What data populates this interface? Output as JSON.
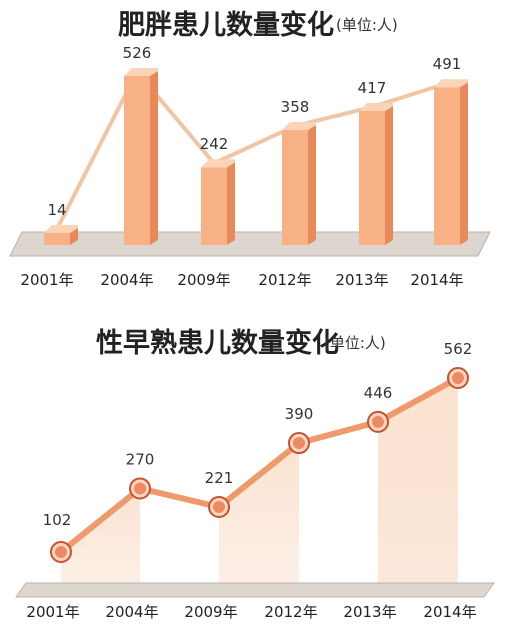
{
  "colors": {
    "bar_front": "#f7b184",
    "bar_side": "#e8895a",
    "bar_top": "#fbd3b6",
    "connector": "#f1c4a4",
    "line": "#ee9a6c",
    "marker_fill": "#ee8a63",
    "marker_stroke": "#c8522d",
    "area": "#fbe3d2",
    "floor": "#ddd6cf",
    "floor_edge": "#bdb2a7"
  },
  "chart_data": [
    {
      "type": "bar",
      "title": "肥胖患儿数量变化",
      "unit": "(单位:人)",
      "categories": [
        "2001年",
        "2004年",
        "2009年",
        "2012年",
        "2013年",
        "2014年"
      ],
      "series": [
        {
          "values": [
            14,
            526,
            242,
            358,
            417,
            491
          ]
        }
      ],
      "ylim": [
        0,
        526
      ],
      "grid": false,
      "legend": "none"
    },
    {
      "type": "line",
      "title": "性早熟患儿数量变化",
      "unit": "(单位:人)",
      "categories": [
        "2001年",
        "2004年",
        "2009年",
        "2012年",
        "2013年",
        "2014年"
      ],
      "series": [
        {
          "values": [
            102,
            270,
            221,
            390,
            446,
            562
          ]
        }
      ],
      "ylim": [
        102,
        562
      ],
      "grid": false,
      "legend": "none"
    }
  ]
}
